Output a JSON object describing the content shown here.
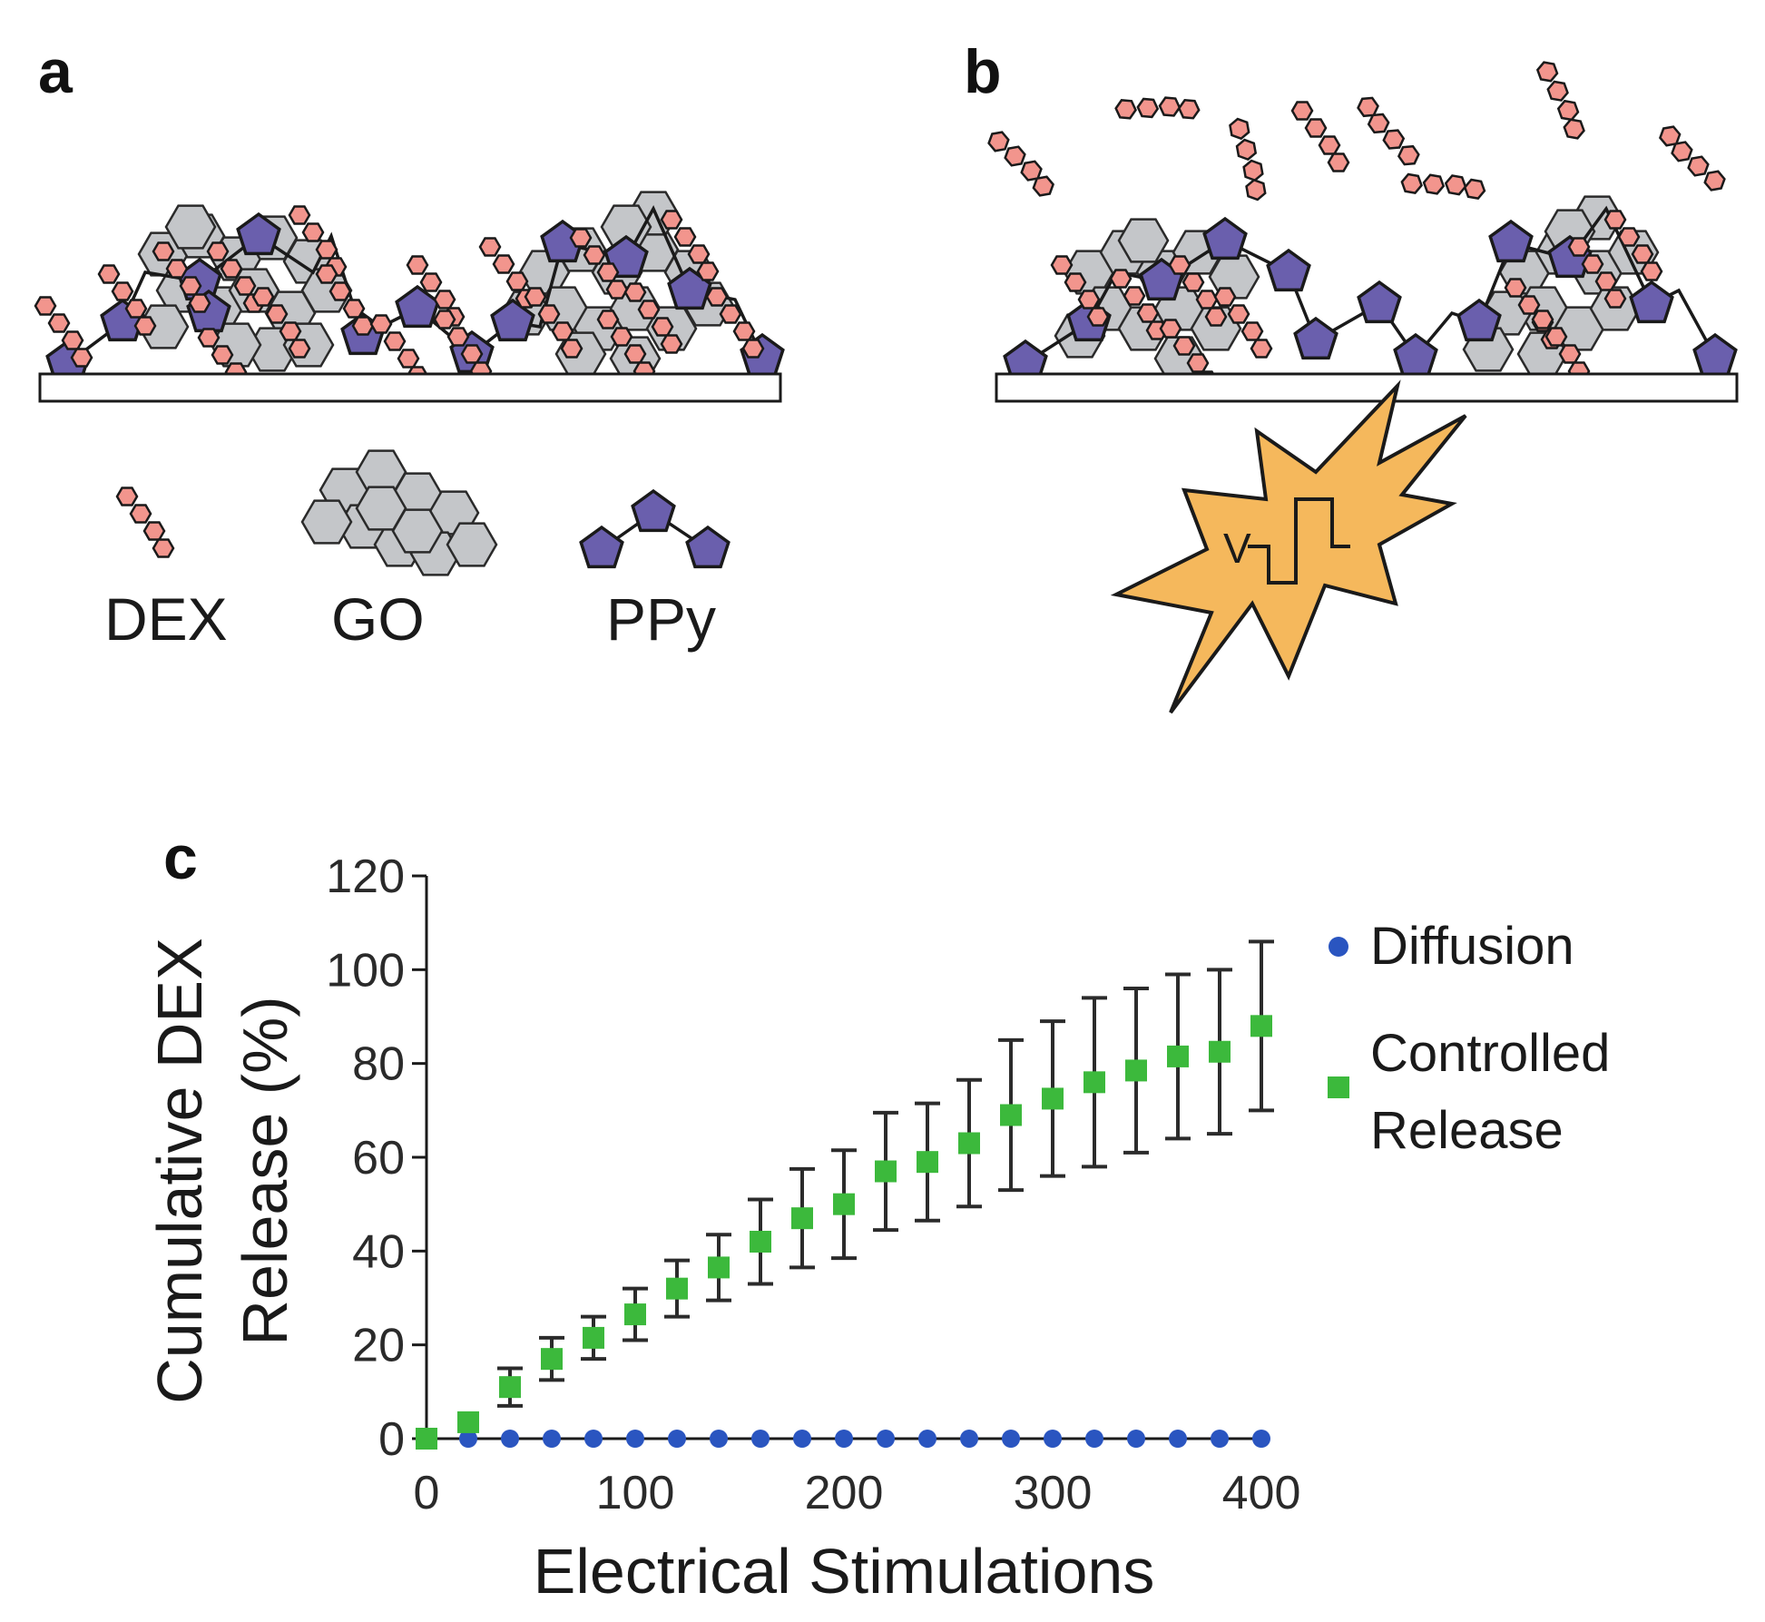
{
  "panels": {
    "a": {
      "label": "a"
    },
    "b": {
      "label": "b",
      "pulse_symbol": "V"
    },
    "c": {
      "label": "c"
    }
  },
  "legend": {
    "dex": "DEX",
    "go": "GO",
    "ppy": "PPy"
  },
  "colors": {
    "dex": "#f2958d",
    "go": "#c4c6c9",
    "ppy": "#6a5fad",
    "burst": "#f5b85c",
    "diffusion": "#2a55c0",
    "controlled": "#3cb93c",
    "ink": "#1a1a1a"
  },
  "chart_data": {
    "type": "scatter",
    "xlabel": "Electrical Stimulations",
    "ylabel": [
      "Cumulative DEX",
      "Release (%)"
    ],
    "xlim": [
      0,
      400
    ],
    "ylim": [
      0,
      120
    ],
    "xticks": [
      "0",
      "100",
      "200",
      "300",
      "400"
    ],
    "yticks": [
      "0",
      "20",
      "40",
      "60",
      "80",
      "100",
      "120"
    ],
    "legend_position": "right",
    "series": [
      {
        "name": "Diffusion",
        "label_lines": [
          "Diffusion"
        ],
        "marker": "circle",
        "x": [
          0,
          20,
          40,
          60,
          80,
          100,
          120,
          140,
          160,
          180,
          200,
          220,
          240,
          260,
          280,
          300,
          320,
          340,
          360,
          380,
          400
        ],
        "y": [
          0,
          0,
          0,
          0,
          0,
          0,
          0,
          0,
          0,
          0,
          0,
          0,
          0,
          0,
          0,
          0,
          0,
          0,
          0,
          0,
          0
        ]
      },
      {
        "name": "Controlled Release",
        "label_lines": [
          "Controlled",
          "Release"
        ],
        "marker": "square",
        "x": [
          0,
          20,
          40,
          60,
          80,
          100,
          120,
          140,
          160,
          180,
          200,
          220,
          240,
          260,
          280,
          300,
          320,
          340,
          360,
          380,
          400
        ],
        "y": [
          0,
          3.5,
          11,
          17,
          21.5,
          26.5,
          32,
          36.5,
          42,
          47,
          50,
          57,
          59,
          63,
          69,
          72.5,
          76,
          78.5,
          81.5,
          82.5,
          88
        ],
        "err": [
          0,
          0,
          4,
          4.5,
          4.5,
          5.5,
          6,
          7,
          9,
          10.5,
          11.5,
          12.5,
          12.5,
          13.5,
          16,
          16.5,
          18,
          17.5,
          17.5,
          17.5,
          18
        ]
      }
    ]
  }
}
